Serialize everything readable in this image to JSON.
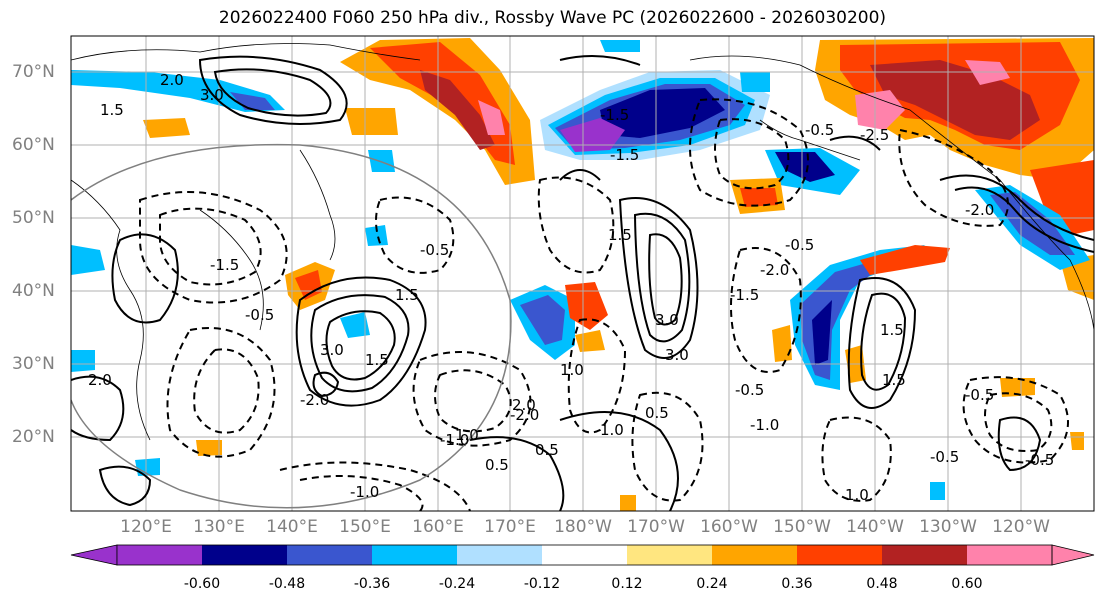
{
  "title": "2026022400 F060 250 hPa div., Rossby Wave PC (2026022600 - 2026030200)",
  "latitude_labels": [
    "70°N",
    "60°N",
    "50°N",
    "40°N",
    "30°N",
    "20°N"
  ],
  "longitude_labels": [
    "120°E",
    "130°E",
    "140°E",
    "150°E",
    "160°E",
    "170°E",
    "180°W",
    "170°W",
    "160°W",
    "150°W",
    "140°W",
    "130°W",
    "120°W"
  ],
  "contour_labels": [
    "-0.5",
    "-0.5",
    "-0.5",
    "-0.5",
    "-0.5",
    "-1.0",
    "-1.5",
    "-2.0",
    "-1.5",
    "-2.0",
    "-2.5",
    "-0.5",
    "-1.5",
    "-2.0",
    "-0.5",
    "-1.0",
    "2.0",
    "3.0",
    "1.5",
    "2.0",
    "1.5",
    "1.5",
    "1.5",
    "3.0",
    "3.0",
    "1.5",
    "0.5",
    "0.5",
    "0.5",
    "1.0",
    "1.0",
    "1.0",
    "2.0",
    "3.0",
    "1.0",
    "-1.5",
    "-2.0",
    "-1.0",
    "-0.5",
    "1.5"
  ],
  "colorbar": {
    "tick_labels": [
      "-0.60",
      "-0.48",
      "-0.36",
      "-0.24",
      "-0.12",
      "0.12",
      "0.24",
      "0.36",
      "0.48",
      "0.60"
    ],
    "colors": [
      "#9932cc",
      "#00008b",
      "#3a56cf",
      "#00bfff",
      "#b0e0ff",
      "#ffffff",
      "#ffe680",
      "#ffa500",
      "#ff4000",
      "#b22222",
      "#ff82ab"
    ]
  }
}
